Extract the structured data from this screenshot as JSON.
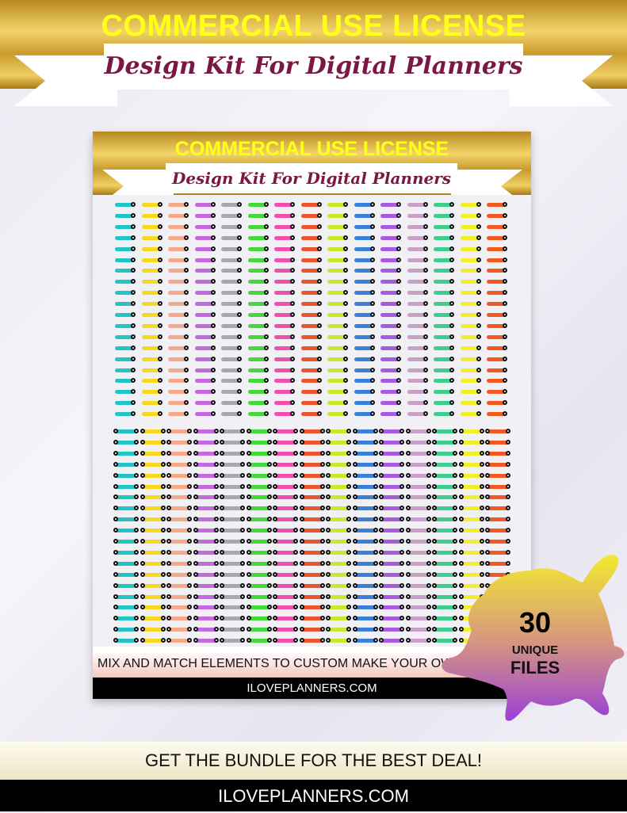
{
  "header": {
    "title": "COMMERCIAL USE LICENSE",
    "subtitle": "Design Kit For Digital Planners"
  },
  "preview": {
    "title": "COMMERCIAL USE LICENSE",
    "subtitle": "Design Kit For Digital Planners",
    "caption": "MIX AND MATCH ELEMENTS TO CUSTOM MAKE YOUR OWN UNIQUE",
    "site": "ILOVEPLANNERS.COM",
    "tab_colors": [
      "#22c4c8",
      "#f7d720",
      "#f6a98a",
      "#c469e0",
      "#a9a9ad",
      "#45d83a",
      "#f04fb0",
      "#e8552e",
      "#c7ea2c",
      "#3a80d8",
      "#a75be0",
      "#c8a0c8",
      "#3ecf8e",
      "#f2ee2a",
      "#f25a24"
    ]
  },
  "badge": {
    "count": "30",
    "line1": "UNIQUE",
    "line2": "FILES",
    "color_top": "#f2ea2e",
    "color_bottom": "#9a3fd8"
  },
  "promo": {
    "text": "GET THE BUNDLE FOR THE BEST DEAL!"
  },
  "footer": {
    "site": "ILOVEPLANNERS.COM"
  }
}
